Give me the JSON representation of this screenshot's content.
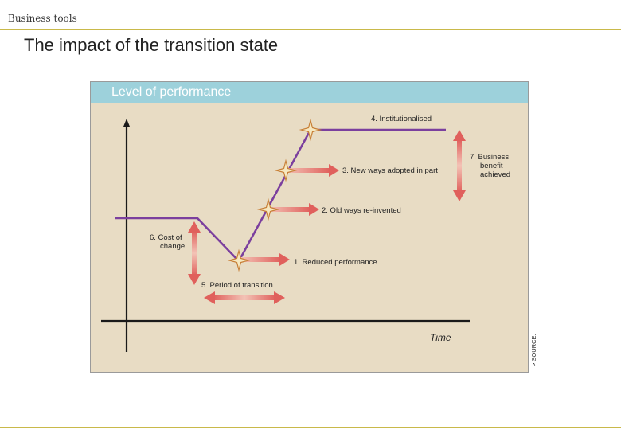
{
  "header": {
    "section_label": "Business tools",
    "title": "The impact of the transition state"
  },
  "diagram": {
    "header_title": "Level of performance",
    "x_axis_label": "Time",
    "source_label": "> SOURCE:",
    "labels": {
      "institutionalised": "4.  Institutionalised",
      "new_ways": "3.  New ways adopted in part",
      "old_ways": "2.  Old ways re-invented",
      "reduced": "1.  Reduced performance",
      "period_of_transition": "5.  Period of transition",
      "cost_of_change_1": "6.  Cost of",
      "cost_of_change_2": "change",
      "benefit_1": "7.  Business",
      "benefit_2": "benefit",
      "benefit_3": "achieved"
    },
    "colors": {
      "line": "#7b3f9e",
      "arrow": "#e46f6f",
      "panel": "#e8dcc4",
      "header": "#9dd1db",
      "star": "#c77f36"
    }
  }
}
